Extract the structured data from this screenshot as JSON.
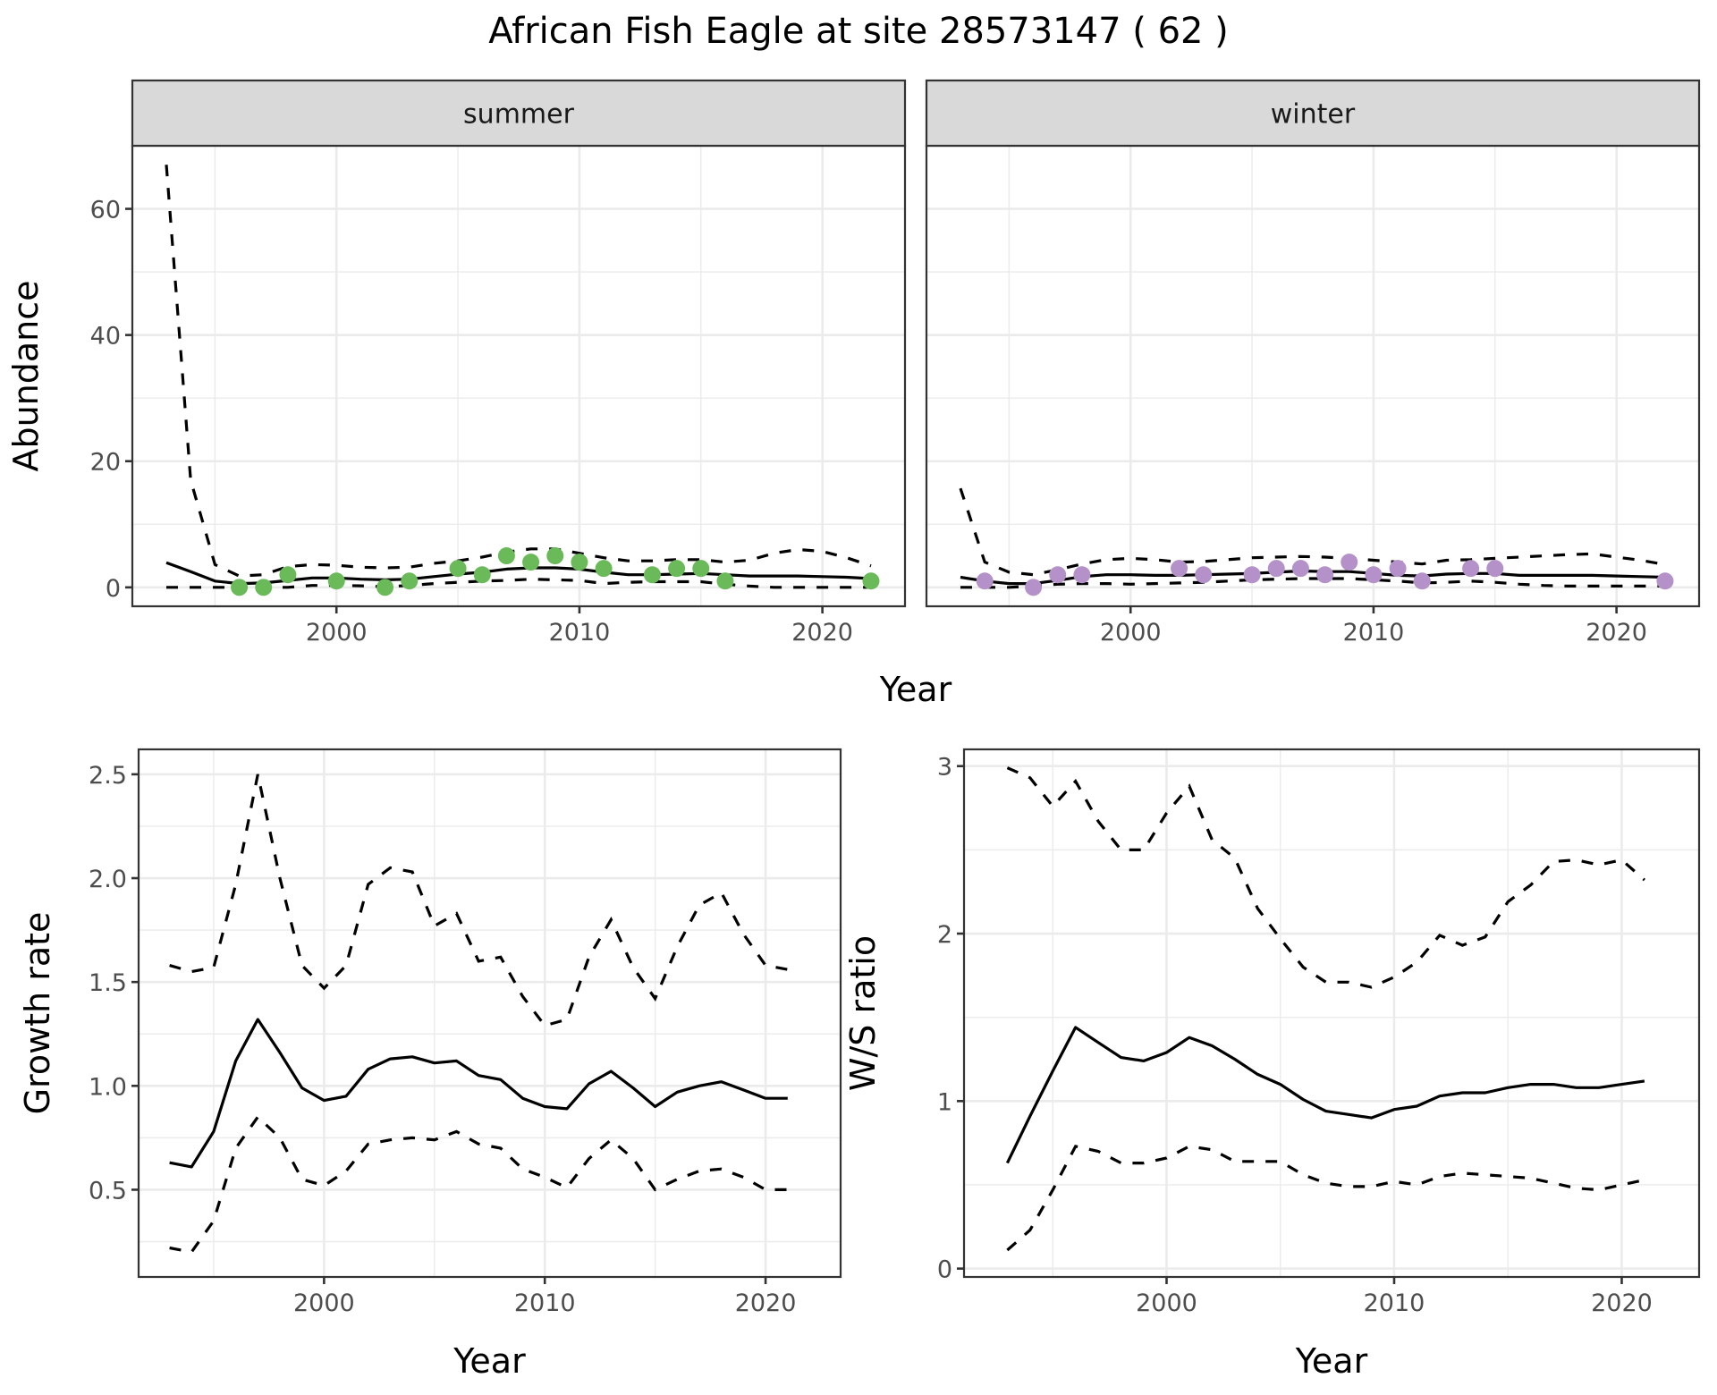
{
  "chart_data": {
    "title": "African Fish Eagle at site 28573147 ( 62 )",
    "panels": [
      {
        "id": "abundance-summer",
        "type": "line",
        "strip": "summer",
        "xlabel": "Year",
        "ylabel": "Abundance",
        "xlim": [
          1991.6,
          2023.4
        ],
        "ylim": [
          -3,
          70
        ],
        "xticks": [
          2000,
          2010,
          2020
        ],
        "yticks": [
          0,
          20,
          40,
          60
        ],
        "point_color": "#6aba5a",
        "x": [
          1993,
          1994,
          1995,
          1996,
          1997,
          1998,
          1999,
          2000,
          2001,
          2002,
          2003,
          2004,
          2005,
          2006,
          2007,
          2008,
          2009,
          2010,
          2011,
          2012,
          2013,
          2014,
          2015,
          2016,
          2017,
          2018,
          2019,
          2020,
          2021,
          2022
        ],
        "series": [
          {
            "name": "mean",
            "style": "solid",
            "values": [
              3.9,
              2.5,
              1.0,
              0.6,
              0.7,
              1.1,
              1.5,
              1.5,
              1.3,
              1.2,
              1.3,
              1.7,
              2.1,
              2.4,
              2.9,
              3.1,
              3.1,
              2.9,
              2.4,
              2.0,
              2.0,
              2.1,
              2.2,
              2.0,
              1.8,
              1.8,
              1.8,
              1.7,
              1.6,
              1.4
            ]
          },
          {
            "name": "upper",
            "style": "dashed",
            "values": [
              67,
              17,
              3.6,
              1.8,
              2.0,
              3.3,
              3.6,
              3.5,
              3.2,
              3.1,
              3.2,
              3.8,
              4.2,
              4.8,
              5.6,
              6.1,
              6.1,
              5.4,
              4.7,
              4.2,
              4.2,
              4.4,
              4.4,
              4.0,
              4.3,
              5.4,
              6.0,
              5.7,
              4.7,
              3.4
            ]
          },
          {
            "name": "lower",
            "style": "dashed",
            "values": [
              0,
              0,
              0,
              0,
              0,
              0,
              0.3,
              0.3,
              0.25,
              0.1,
              0.3,
              0.6,
              0.8,
              1.0,
              1.1,
              1.3,
              1.2,
              1.1,
              0.6,
              0.8,
              0.9,
              0.9,
              0.9,
              0.5,
              0.2,
              0,
              0,
              0,
              0,
              0
            ]
          }
        ],
        "points": {
          "x": [
            1996,
            1997,
            1998,
            2000,
            2002,
            2003,
            2005,
            2006,
            2007,
            2008,
            2009,
            2010,
            2011,
            2013,
            2014,
            2015,
            2016,
            2022
          ],
          "y": [
            0,
            0,
            2,
            1,
            0,
            1,
            3,
            2,
            5,
            4,
            5,
            4,
            3,
            2,
            3,
            3,
            1,
            1
          ]
        }
      },
      {
        "id": "abundance-winter",
        "type": "line",
        "strip": "winter",
        "xlabel": "Year",
        "ylabel": "Abundance",
        "xlim": [
          1991.6,
          2023.4
        ],
        "ylim": [
          -3,
          70
        ],
        "xticks": [
          2000,
          2010,
          2020
        ],
        "yticks": [
          0,
          20,
          40,
          60
        ],
        "point_color": "#b491c8",
        "x": [
          1993,
          1994,
          1995,
          1996,
          1997,
          1998,
          1999,
          2000,
          2001,
          2002,
          2003,
          2004,
          2005,
          2006,
          2007,
          2008,
          2009,
          2010,
          2011,
          2012,
          2013,
          2014,
          2015,
          2016,
          2017,
          2018,
          2019,
          2020,
          2021,
          2022
        ],
        "series": [
          {
            "name": "mean",
            "style": "solid",
            "values": [
              1.6,
              1.0,
              0.6,
              0.6,
              1.1,
              1.7,
              2.0,
              2.0,
              1.9,
              1.9,
              2.0,
              2.1,
              2.2,
              2.4,
              2.6,
              2.5,
              2.5,
              2.2,
              1.9,
              1.8,
              2.1,
              2.2,
              2.2,
              1.9,
              1.9,
              1.9,
              1.9,
              1.8,
              1.7,
              1.6
            ]
          },
          {
            "name": "upper",
            "style": "dashed",
            "values": [
              15.7,
              4.0,
              2.4,
              2.0,
              2.8,
              3.7,
              4.4,
              4.6,
              4.4,
              4.0,
              4.1,
              4.4,
              4.7,
              4.8,
              4.9,
              4.8,
              4.6,
              4.3,
              4.0,
              3.7,
              4.3,
              4.4,
              4.6,
              4.8,
              5.0,
              5.2,
              5.3,
              4.8,
              4.3,
              3.6
            ]
          },
          {
            "name": "lower",
            "style": "dashed",
            "values": [
              0,
              0,
              0,
              0.2,
              0.5,
              0.6,
              0.6,
              0.5,
              0.6,
              0.7,
              0.8,
              1.0,
              1.2,
              1.3,
              1.4,
              1.4,
              1.4,
              1.2,
              1.0,
              0.7,
              0.8,
              1.0,
              0.8,
              0.5,
              0.3,
              0.2,
              0.2,
              0.2,
              0.2,
              0.2
            ]
          }
        ],
        "points": {
          "x": [
            1994,
            1996,
            1997,
            1998,
            2002,
            2003,
            2005,
            2006,
            2007,
            2008,
            2009,
            2010,
            2011,
            2012,
            2014,
            2015,
            2022
          ],
          "y": [
            1,
            0,
            2,
            2,
            3,
            2,
            2,
            3,
            3,
            2,
            4,
            2,
            3,
            1,
            3,
            3,
            1
          ]
        }
      },
      {
        "id": "growth-rate",
        "type": "line",
        "xlabel": "Year",
        "ylabel": "Growth rate",
        "xlim": [
          1991.6,
          2023.4
        ],
        "ylim": [
          0.08,
          2.62
        ],
        "xticks": [
          2000,
          2010,
          2020
        ],
        "yticks": [
          0.5,
          1.0,
          1.5,
          2.0,
          2.5
        ],
        "ytick_labels": [
          "0.5",
          "1.0",
          "1.5",
          "2.0",
          "2.5"
        ],
        "x": [
          1993,
          1994,
          1995,
          1996,
          1997,
          1998,
          1999,
          2000,
          2001,
          2002,
          2003,
          2004,
          2005,
          2006,
          2007,
          2008,
          2009,
          2010,
          2011,
          2012,
          2013,
          2014,
          2015,
          2016,
          2017,
          2018,
          2019,
          2020,
          2021
        ],
        "series": [
          {
            "name": "mean",
            "style": "solid",
            "values": [
              0.63,
              0.61,
              0.78,
              1.12,
              1.32,
              1.16,
              0.99,
              0.93,
              0.95,
              1.08,
              1.13,
              1.14,
              1.11,
              1.12,
              1.05,
              1.03,
              0.94,
              0.9,
              0.89,
              1.01,
              1.07,
              0.99,
              0.9,
              0.97,
              1.0,
              1.02,
              0.98,
              0.94,
              0.94
            ]
          },
          {
            "name": "upper",
            "style": "dashed",
            "values": [
              1.58,
              1.55,
              1.57,
              1.97,
              2.5,
              2.0,
              1.58,
              1.47,
              1.58,
              1.97,
              2.05,
              2.03,
              1.77,
              1.83,
              1.6,
              1.62,
              1.43,
              1.29,
              1.32,
              1.62,
              1.8,
              1.57,
              1.42,
              1.67,
              1.87,
              1.93,
              1.73,
              1.58,
              1.56
            ]
          },
          {
            "name": "lower",
            "style": "dashed",
            "values": [
              0.22,
              0.2,
              0.35,
              0.7,
              0.85,
              0.75,
              0.55,
              0.52,
              0.59,
              0.72,
              0.74,
              0.75,
              0.74,
              0.78,
              0.72,
              0.7,
              0.6,
              0.56,
              0.51,
              0.65,
              0.74,
              0.65,
              0.5,
              0.55,
              0.59,
              0.6,
              0.56,
              0.5,
              0.5
            ]
          }
        ]
      },
      {
        "id": "ws-ratio",
        "type": "line",
        "xlabel": "Year",
        "ylabel": "W/S ratio",
        "xlim": [
          1991.1,
          2023.4
        ],
        "ylim": [
          -0.05,
          3.1
        ],
        "xticks": [
          2000,
          2010,
          2020
        ],
        "yticks": [
          0,
          1,
          2,
          3
        ],
        "ytick_labels": [
          "0",
          "1",
          "2",
          "3"
        ],
        "x": [
          1993,
          1994,
          1995,
          1996,
          1997,
          1998,
          1999,
          2000,
          2001,
          2002,
          2003,
          2004,
          2005,
          2006,
          2007,
          2008,
          2009,
          2010,
          2011,
          2012,
          2013,
          2014,
          2015,
          2016,
          2017,
          2018,
          2019,
          2020,
          2021
        ],
        "series": [
          {
            "name": "mean",
            "style": "solid",
            "values": [
              0.63,
              0.91,
              1.18,
              1.44,
              1.35,
              1.26,
              1.24,
              1.29,
              1.38,
              1.33,
              1.25,
              1.16,
              1.1,
              1.01,
              0.94,
              0.92,
              0.9,
              0.95,
              0.97,
              1.03,
              1.05,
              1.05,
              1.08,
              1.1,
              1.1,
              1.08,
              1.08,
              1.1,
              1.12
            ]
          },
          {
            "name": "upper",
            "style": "dashed",
            "values": [
              2.99,
              2.93,
              2.76,
              2.91,
              2.67,
              2.5,
              2.5,
              2.72,
              2.88,
              2.56,
              2.45,
              2.15,
              1.97,
              1.8,
              1.71,
              1.71,
              1.68,
              1.74,
              1.83,
              1.99,
              1.93,
              1.98,
              2.19,
              2.29,
              2.43,
              2.44,
              2.41,
              2.44,
              2.32
            ]
          },
          {
            "name": "lower",
            "style": "dashed",
            "values": [
              0.11,
              0.23,
              0.47,
              0.73,
              0.7,
              0.63,
              0.63,
              0.66,
              0.73,
              0.71,
              0.64,
              0.64,
              0.64,
              0.56,
              0.51,
              0.49,
              0.49,
              0.52,
              0.5,
              0.55,
              0.57,
              0.56,
              0.55,
              0.54,
              0.51,
              0.48,
              0.47,
              0.5,
              0.53
            ]
          }
        ]
      }
    ]
  }
}
